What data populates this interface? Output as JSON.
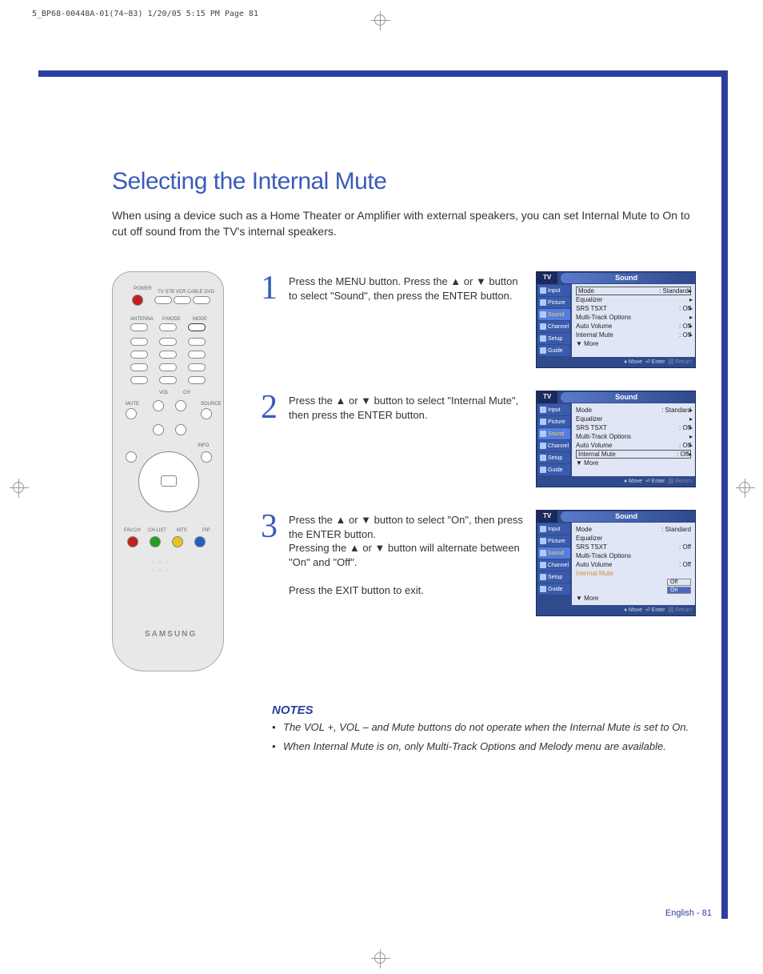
{
  "crop_header": "5_BP68-00448A-01(74~83)  1/20/05  5:15 PM  Page 81",
  "title": "Selecting the Internal Mute",
  "intro": "When using a device such as a Home Theater or Amplifier with external speakers, you can set Internal Mute to On to cut off sound from the TV's internal speakers.",
  "remote": {
    "top_labels": [
      "POWER",
      "TV STB VCR CABLE DVD"
    ],
    "row_labels": [
      "ANTENNA",
      "P.MODE",
      "MODE"
    ],
    "side_labels": {
      "mute": "MUTE",
      "source": "SOURCE",
      "vol": "VOL",
      "ch": "CH",
      "info": "INFO"
    },
    "bottom_row": [
      "FAV.CH",
      "CH.LIST",
      "MTS",
      "PIP"
    ],
    "brand": "SAMSUNG"
  },
  "steps": [
    {
      "num": "1",
      "text": "Press the MENU button. Press the ▲ or ▼ button to select \"Sound\", then press the ENTER button.",
      "osd": {
        "highlighted_row": 0,
        "boxed_row": 0,
        "alt_mode": false
      }
    },
    {
      "num": "2",
      "text": "Press the ▲ or ▼ button to select \"Internal Mute\", then press the ENTER button.",
      "osd": {
        "highlighted_row": null,
        "boxed_row": 5,
        "alt_mode": false
      }
    },
    {
      "num": "3",
      "text": "Press the ▲ or ▼ button to select \"On\", then press the ENTER button.\nPressing the ▲ or ▼ button will alternate between \"On\" and \"Off\".\n\nPress the EXIT button to exit.",
      "osd": {
        "highlighted_row": 5,
        "boxed_row": null,
        "alt_mode": true
      }
    }
  ],
  "osd_common": {
    "tv_label": "TV",
    "title": "Sound",
    "tabs": [
      "Input",
      "Picture",
      "Sound",
      "Channel",
      "Setup",
      "Guide"
    ],
    "active_tab": 2,
    "items": [
      {
        "label": "Mode",
        "value": ": Standard"
      },
      {
        "label": "Equalizer",
        "value": ""
      },
      {
        "label": "SRS TSXT",
        "value": ": Off"
      },
      {
        "label": "Multi-Track Options",
        "value": ""
      },
      {
        "label": "Auto Volume",
        "value": ": Off"
      },
      {
        "label": "Internal Mute",
        "value": ": Off"
      },
      {
        "label": "▼ More",
        "value": "",
        "no_arrow": true
      }
    ],
    "options": [
      "Off",
      "On"
    ],
    "footer": {
      "move": "Move",
      "enter": "Enter",
      "return": "Return"
    }
  },
  "notes": {
    "header": "NOTES",
    "items": [
      "The VOL +, VOL – and Mute buttons do not operate when the Internal Mute is set to On.",
      "When Internal Mute is on, only Multi-Track Options and Melody menu are available."
    ]
  },
  "pagenum": "English - 81",
  "colors": {
    "brand_blue": "#2b3e9f",
    "light_blue": "#3a5bb8",
    "osd_bg": "#2f4a8d",
    "osd_menu_bg": "#e0e6f5",
    "highlight": "#d09030"
  }
}
